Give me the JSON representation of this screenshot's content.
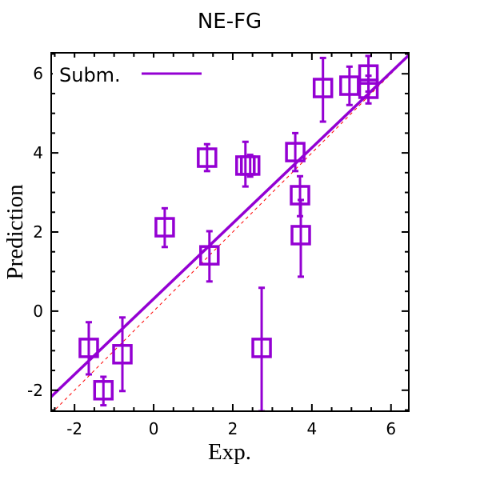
{
  "chart_data": {
    "type": "scatter",
    "title": "NE-FG",
    "xlabel": "Exp.",
    "ylabel": "Prediction",
    "xlim": [
      -2.59,
      6.45
    ],
    "ylim": [
      -2.53,
      6.53
    ],
    "xticks": [
      -2,
      0,
      2,
      4,
      6
    ],
    "yticks": [
      -2,
      0,
      2,
      4,
      6
    ],
    "xtick_labels": [
      "-2",
      "0",
      "2",
      "4",
      "6"
    ],
    "ytick_labels": [
      "-2",
      "0",
      "2",
      "4",
      "6"
    ],
    "legend": {
      "position": "top-left",
      "entries": [
        "Subm."
      ]
    },
    "grid": false,
    "colors": {
      "series": "#9400d3",
      "reference": "#ff0000"
    },
    "series": [
      {
        "name": "Subm.",
        "points": [
          {
            "x": -1.64,
            "y": -0.93,
            "err_lo": -1.6,
            "err_hi": -0.28
          },
          {
            "x": -1.27,
            "y": -2.0,
            "err_lo": -2.38,
            "err_hi": -1.66
          },
          {
            "x": -0.79,
            "y": -1.09,
            "err_lo": -2.02,
            "err_hi": -0.16
          },
          {
            "x": 0.28,
            "y": 2.12,
            "err_lo": 1.62,
            "err_hi": 2.6
          },
          {
            "x": 1.35,
            "y": 3.88,
            "err_lo": 3.54,
            "err_hi": 4.22
          },
          {
            "x": 1.41,
            "y": 1.41,
            "err_lo": 0.75,
            "err_hi": 2.02
          },
          {
            "x": 2.32,
            "y": 3.68,
            "err_lo": 3.15,
            "err_hi": 4.28
          },
          {
            "x": 2.44,
            "y": 3.68,
            "err_lo": 3.4,
            "err_hi": 3.95
          },
          {
            "x": 2.73,
            "y": -0.93,
            "err_lo": -2.53,
            "err_hi": 0.59
          },
          {
            "x": 3.58,
            "y": 4.02,
            "err_lo": 3.54,
            "err_hi": 4.5
          },
          {
            "x": 3.7,
            "y": 2.93,
            "err_lo": 2.4,
            "err_hi": 3.41
          },
          {
            "x": 3.72,
            "y": 1.92,
            "err_lo": 0.87,
            "err_hi": 2.81
          },
          {
            "x": 4.28,
            "y": 5.64,
            "err_lo": 4.79,
            "err_hi": 6.4
          },
          {
            "x": 4.95,
            "y": 5.7,
            "err_lo": 5.21,
            "err_hi": 6.18
          },
          {
            "x": 5.43,
            "y": 5.98,
            "err_lo": 5.55,
            "err_hi": 6.45
          },
          {
            "x": 5.43,
            "y": 5.62,
            "err_lo": 5.25,
            "err_hi": 5.95
          }
        ],
        "fit_line": {
          "slope": 0.955,
          "intercept": 0.31
        }
      }
    ],
    "reference_line": {
      "slope": 1,
      "intercept": 0,
      "style": "dashed"
    }
  }
}
